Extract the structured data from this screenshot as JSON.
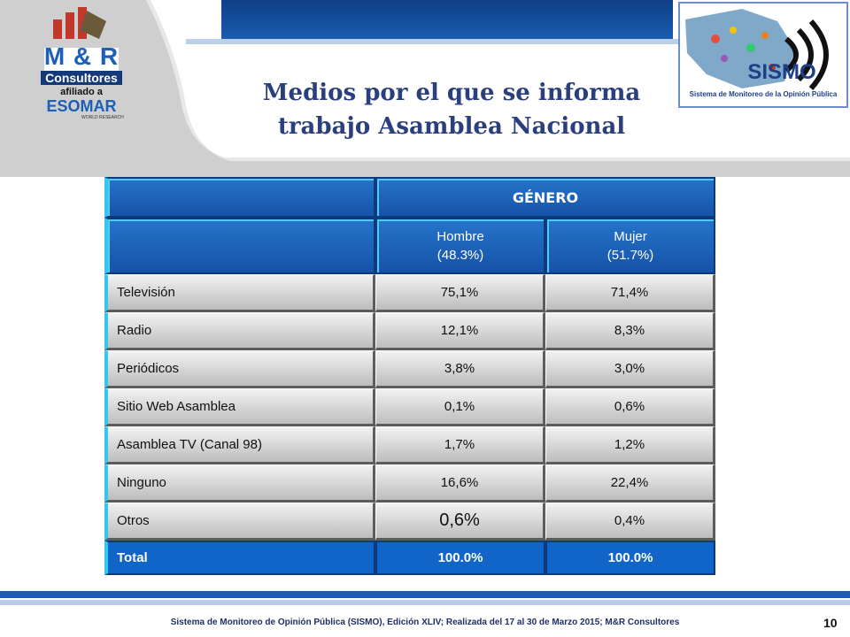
{
  "header": {
    "title_line1": "Medios por el que se informa",
    "title_line2": "trabajo Asamblea Nacional"
  },
  "logos": {
    "mr_main": "M & R",
    "mr_sub": "Consultores",
    "mr_affiliated": "afiliado a",
    "mr_esomar": "ESOMAR",
    "mr_world": "WORLD RESEARCH",
    "sismo_name": "SISMO",
    "sismo_caption": "Sistema de Monitoreo de la Opinión Pública"
  },
  "table": {
    "group_header": "GÉNERO",
    "col1_line1": "Hombre",
    "col1_line2": "(48.3%)",
    "col2_line1": "Mujer",
    "col2_line2": "(51.7%)",
    "rows": [
      {
        "label": "Televisión",
        "hombre": "75,1%",
        "mujer": "71,4%"
      },
      {
        "label": "Radio",
        "hombre": "12,1%",
        "mujer": "8,3%"
      },
      {
        "label": "Periódicos",
        "hombre": "3,8%",
        "mujer": "3,0%"
      },
      {
        "label": "Sitio Web Asamblea",
        "hombre": "0,1%",
        "mujer": "0,6%"
      },
      {
        "label": "Asamblea TV (Canal 98)",
        "hombre": "1,7%",
        "mujer": "1,2%"
      },
      {
        "label": "Ninguno",
        "hombre": "16,6%",
        "mujer": "22,4%"
      },
      {
        "label": "Otros",
        "hombre": "0,6%",
        "mujer": "0,4%"
      }
    ],
    "total": {
      "label": "Total",
      "hombre": "100.0%",
      "mujer": "100.0%"
    }
  },
  "footer": {
    "text": "Sistema de Monitoreo de Opinión Pública (SISMO), Edición XLIV; Realizada del 17 al 30 de Marzo 2015; M&R Consultores",
    "page": "10"
  },
  "colors": {
    "header_blue": "#1653a8",
    "accent_teal": "#33c6ee",
    "title_navy": "#2b3f7c",
    "total_blue": "#1165c8"
  }
}
